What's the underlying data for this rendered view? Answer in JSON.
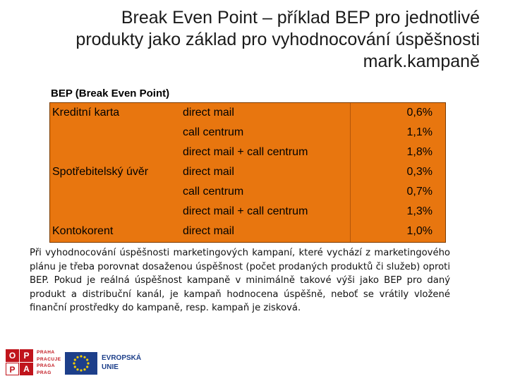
{
  "title": {
    "line1": "Break Even Point – příklad BEP pro jednotlivé",
    "line2": "produkty jako základ pro vyhodnocování úspěšnosti",
    "line3": "mark.kampaně"
  },
  "bep_heading": "BEP (Break Even Point)",
  "table": {
    "rows": [
      {
        "product": "Kreditní karta",
        "channel": "direct mail",
        "value": "0,6%"
      },
      {
        "product": "",
        "channel": "call centrum",
        "value": "1,1%"
      },
      {
        "product": "",
        "channel": "direct mail + call centrum",
        "value": "1,8%"
      },
      {
        "product": "Spotřebitelský úvěr",
        "channel": "direct mail",
        "value": "0,3%"
      },
      {
        "product": "",
        "channel": "call centrum",
        "value": "0,7%"
      },
      {
        "product": "",
        "channel": "direct mail + call centrum",
        "value": "1,3%"
      },
      {
        "product": "Kontokorent",
        "channel": "direct mail",
        "value": "1,0%"
      }
    ],
    "background_color": "#e8760f"
  },
  "paragraph": "Při vyhodnocování úspěšnosti marketingových kampaní, které vychází z marketingového plánu je třeba porovnat dosaženou úspěšnost (počet prodaných produktů či služeb) oproti BEP. Pokud je reálná úspěšnost kampaně v minimálně takové výši jako BEP pro daný produkt a distribuční kanál, je kampaň hodnocena úspěšně, neboť se vrátily vložené finanční prostředky do kampaně, resp. kampaň je zisková.",
  "logos": {
    "oppa_letters": [
      "O",
      "P",
      "P",
      "A"
    ],
    "praha_lines": [
      "PRAHA",
      "PRACUJE",
      "PRAGA",
      "PRAG"
    ],
    "eu_line1": "EVROPSKÁ",
    "eu_line2": "UNIE",
    "brand_red": "#c0141c",
    "eu_blue": "#1d3f8a",
    "eu_star": "#f5d000"
  }
}
